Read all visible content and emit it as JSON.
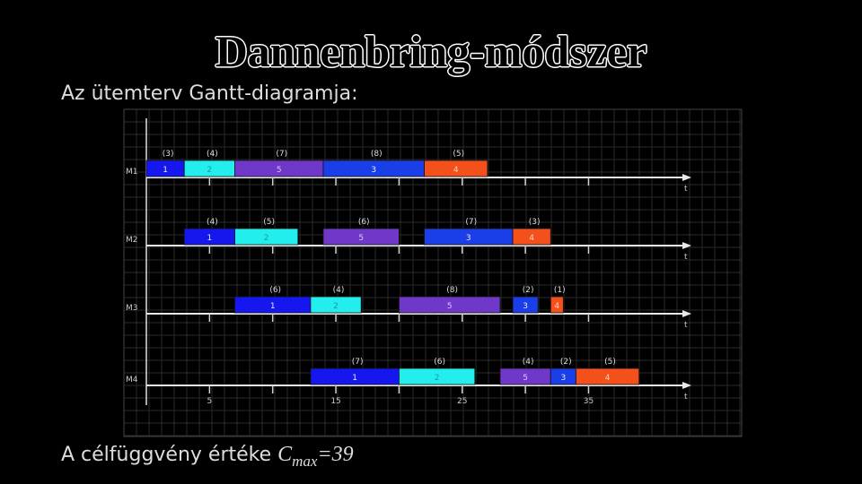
{
  "title": "Dannenbring-módszer",
  "subtitle": "Az ütemterv Gantt-diagramja:",
  "footer": {
    "prefix": "A célfüggvény értéke ",
    "c": "C",
    "sub": "max",
    "value": "=39"
  },
  "colors": {
    "1": "#1616ee",
    "2": "#22eeee",
    "3": "#1a3ee8",
    "4": "#f4501c",
    "5": "#7038c8"
  },
  "axis_label": "t",
  "ticks": [
    {
      "value": 5,
      "label": "5"
    },
    {
      "value": 15,
      "label": "15"
    },
    {
      "value": 25,
      "label": "25"
    },
    {
      "value": 35,
      "label": "35"
    }
  ],
  "chart_data": {
    "type": "gantt",
    "machines": [
      {
        "name": "M1",
        "tasks": [
          {
            "job": "1",
            "start": 0,
            "end": 3,
            "paren": "(3)"
          },
          {
            "job": "2",
            "start": 3,
            "end": 7,
            "paren": "(4)"
          },
          {
            "job": "5",
            "start": 7,
            "end": 14,
            "paren": "(7)"
          },
          {
            "job": "3",
            "start": 14,
            "end": 22,
            "paren": "(8)"
          },
          {
            "job": "4",
            "start": 22,
            "end": 27,
            "paren": "(5)"
          }
        ]
      },
      {
        "name": "M2",
        "tasks": [
          {
            "job": "1",
            "start": 3,
            "end": 7,
            "paren": "(4)"
          },
          {
            "job": "2",
            "start": 7,
            "end": 12,
            "paren": "(5)"
          },
          {
            "job": "5",
            "start": 14,
            "end": 20,
            "paren": "(6)"
          },
          {
            "job": "3",
            "start": 22,
            "end": 29,
            "paren": "(7)"
          },
          {
            "job": "4",
            "start": 29,
            "end": 32,
            "paren": "(3)"
          }
        ]
      },
      {
        "name": "M3",
        "tasks": [
          {
            "job": "1",
            "start": 7,
            "end": 13,
            "paren": "(6)"
          },
          {
            "job": "2",
            "start": 13,
            "end": 17,
            "paren": "(4)"
          },
          {
            "job": "5",
            "start": 20,
            "end": 28,
            "paren": "(8)"
          },
          {
            "job": "3",
            "start": 29,
            "end": 31,
            "paren": "(2)"
          },
          {
            "job": "4",
            "start": 32,
            "end": 33,
            "paren": "(1)"
          }
        ]
      },
      {
        "name": "M4",
        "tasks": [
          {
            "job": "1",
            "start": 13,
            "end": 20,
            "paren": "(7)"
          },
          {
            "job": "2",
            "start": 20,
            "end": 26,
            "paren": "(6)"
          },
          {
            "job": "5",
            "start": 28,
            "end": 32,
            "paren": "(4)"
          },
          {
            "job": "3",
            "start": 32,
            "end": 34,
            "paren": "(2)"
          },
          {
            "job": "4",
            "start": 34,
            "end": 39,
            "paren": "(5)"
          }
        ]
      }
    ]
  }
}
